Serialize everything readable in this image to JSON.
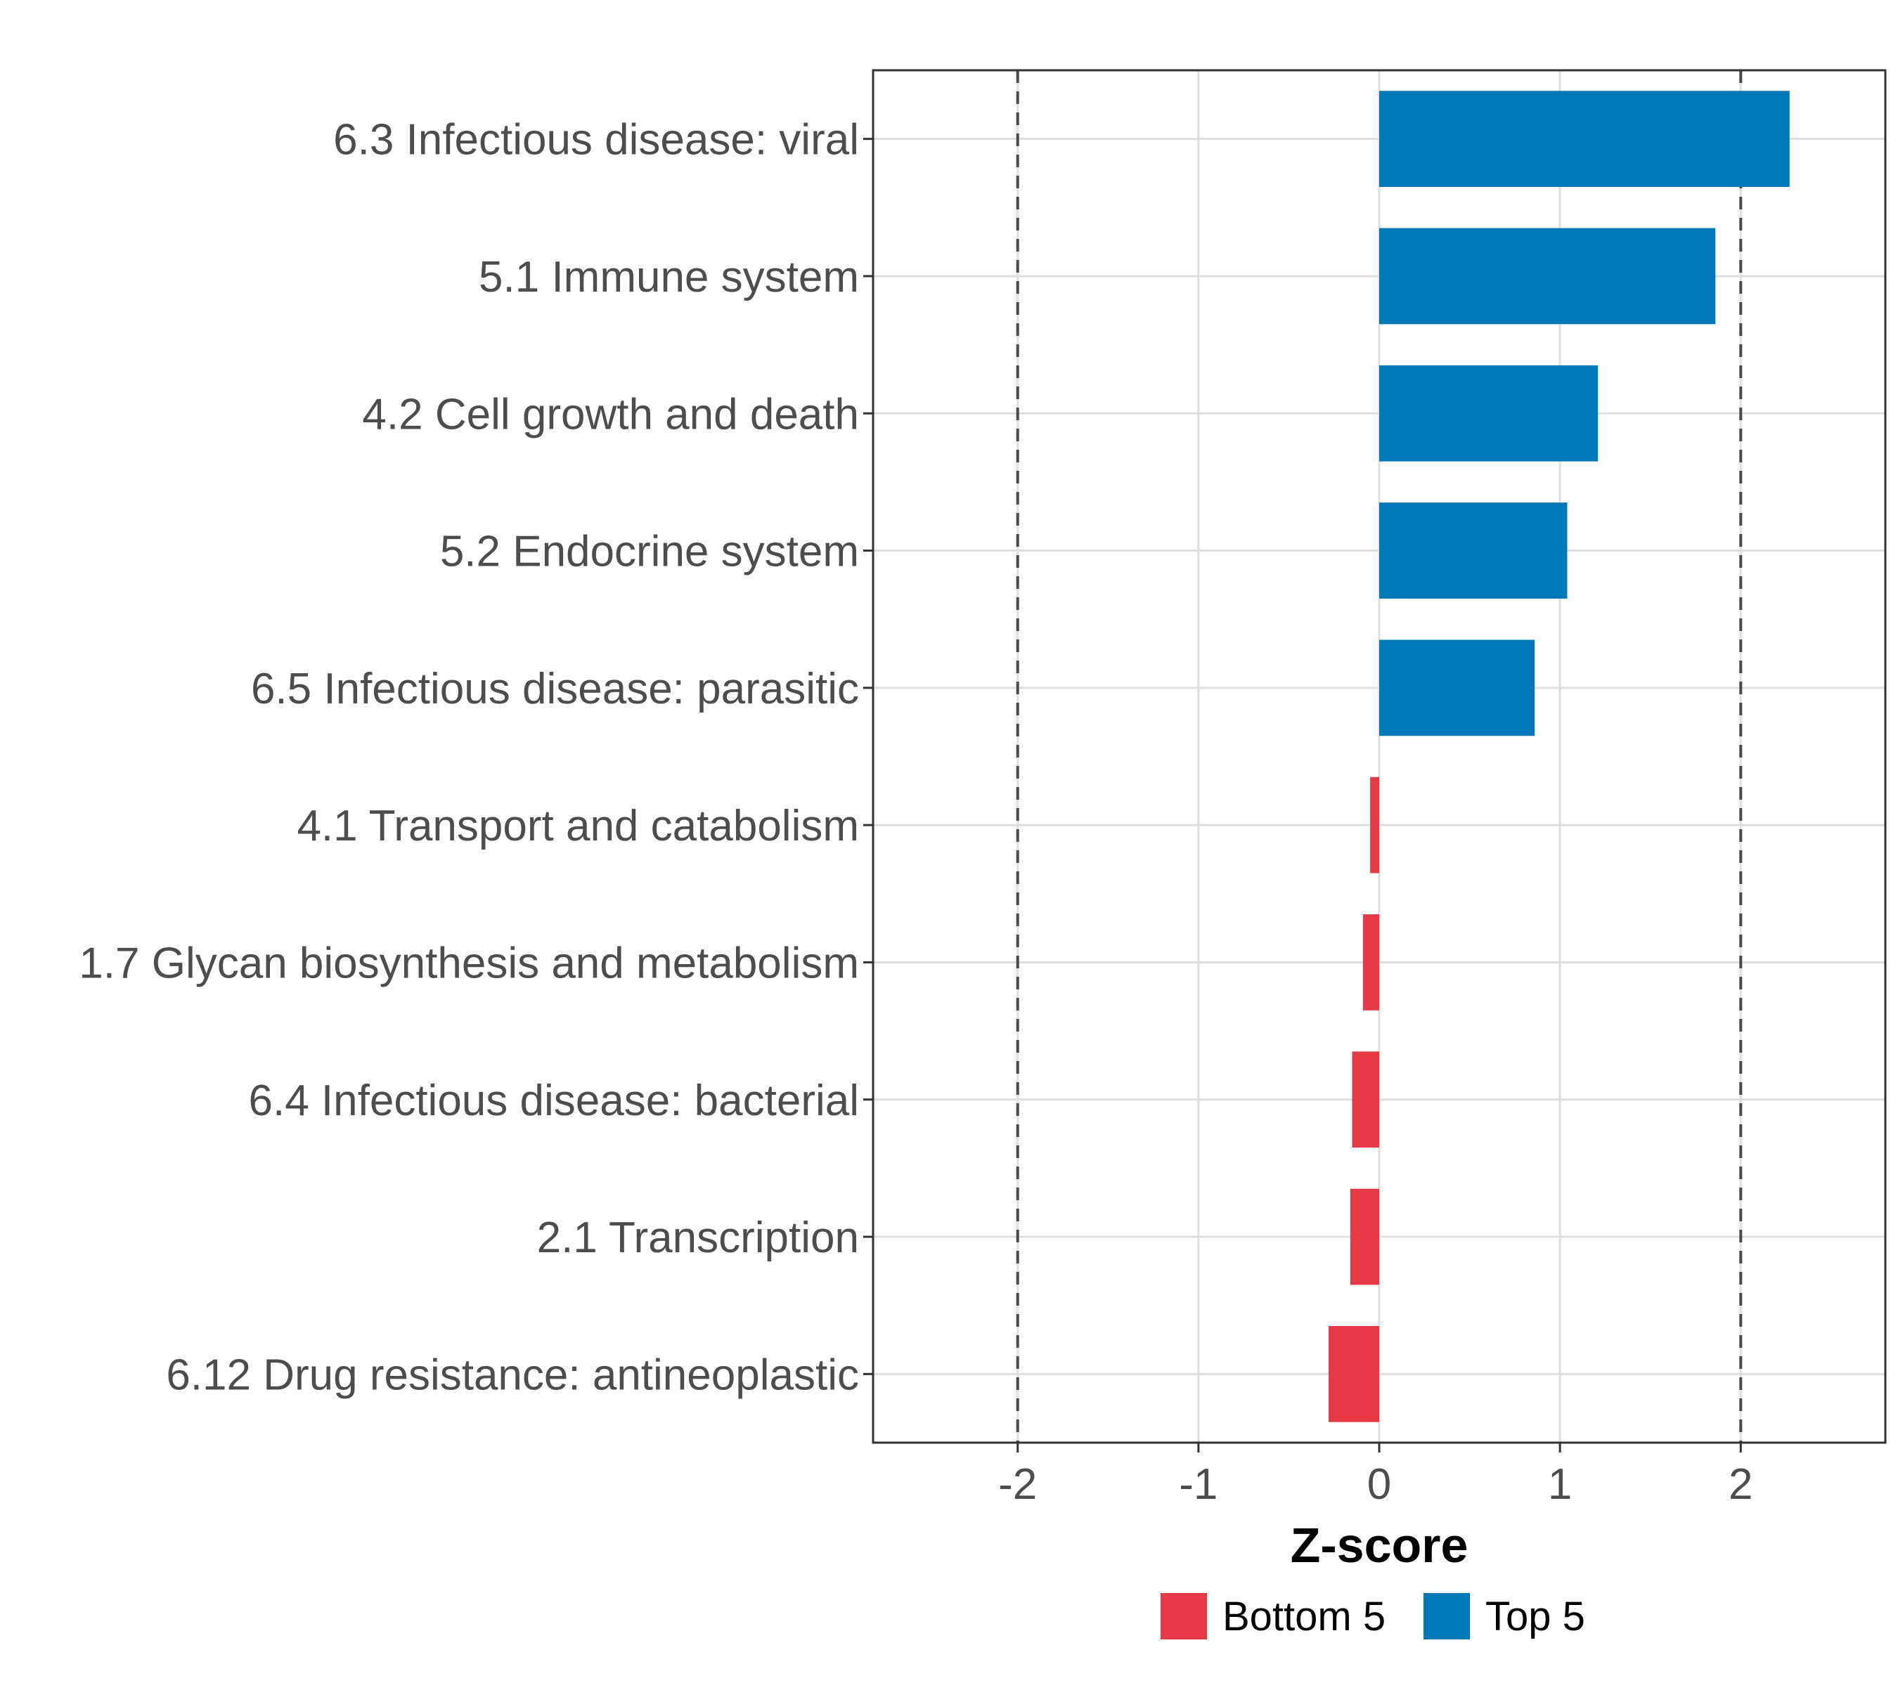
{
  "chart_data": {
    "type": "bar",
    "orientation": "horizontal",
    "xlabel": "Z-score",
    "ylabel": "",
    "xlim": [
      -2.8,
      2.8
    ],
    "x_ticks": [
      -2,
      -1,
      0,
      1,
      2
    ],
    "x_tick_labels": [
      "-2",
      "-1",
      "0",
      "1",
      "2"
    ],
    "reference_lines": [
      -2,
      2
    ],
    "grid": true,
    "legend_position": "bottom",
    "categories": [
      "6.3 Infectious disease: viral",
      "5.1 Immune system",
      "4.2 Cell growth and death",
      "5.2 Endocrine system",
      "6.5 Infectious disease: parasitic",
      "4.1 Transport and catabolism",
      "1.7 Glycan biosynthesis and metabolism",
      "6.4 Infectious disease: bacterial",
      "2.1 Transcription",
      "6.12 Drug resistance: antineoplastic"
    ],
    "values": [
      2.27,
      1.86,
      1.21,
      1.04,
      0.86,
      -0.05,
      -0.09,
      -0.15,
      -0.16,
      -0.28
    ],
    "groups": [
      "Top 5",
      "Top 5",
      "Top 5",
      "Top 5",
      "Top 5",
      "Bottom 5",
      "Bottom 5",
      "Bottom 5",
      "Bottom 5",
      "Bottom 5"
    ],
    "legend": [
      {
        "name": "Bottom 5",
        "color": "#E63946"
      },
      {
        "name": "Top 5",
        "color": "#0077B6"
      }
    ]
  }
}
